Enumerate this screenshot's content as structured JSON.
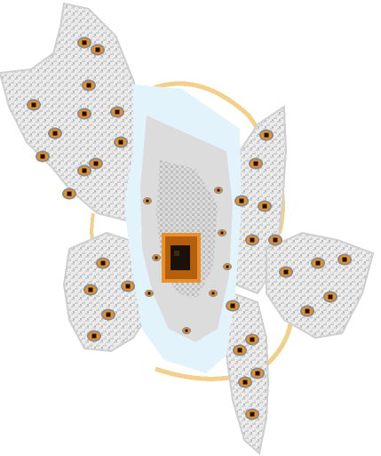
{
  "scene": {
    "subject": "white-eyed-creature-sprite",
    "colors": {
      "background": "#ffffff",
      "plumage_light": "#ececec",
      "plumage_mid": "#cfcfcf",
      "plumage_dark": "#a9a9a9",
      "core_pale": "#d8ecf6",
      "core_blue_edge": "#e3f3fb",
      "ring_gold": "#f3cf8c",
      "eye_orange": "#e8902a",
      "eye_dark_orange": "#b55f0e",
      "eye_pupil": "#1a1208"
    },
    "eyes": {
      "main": 1,
      "on_wings": 34,
      "on_core": 8
    }
  }
}
